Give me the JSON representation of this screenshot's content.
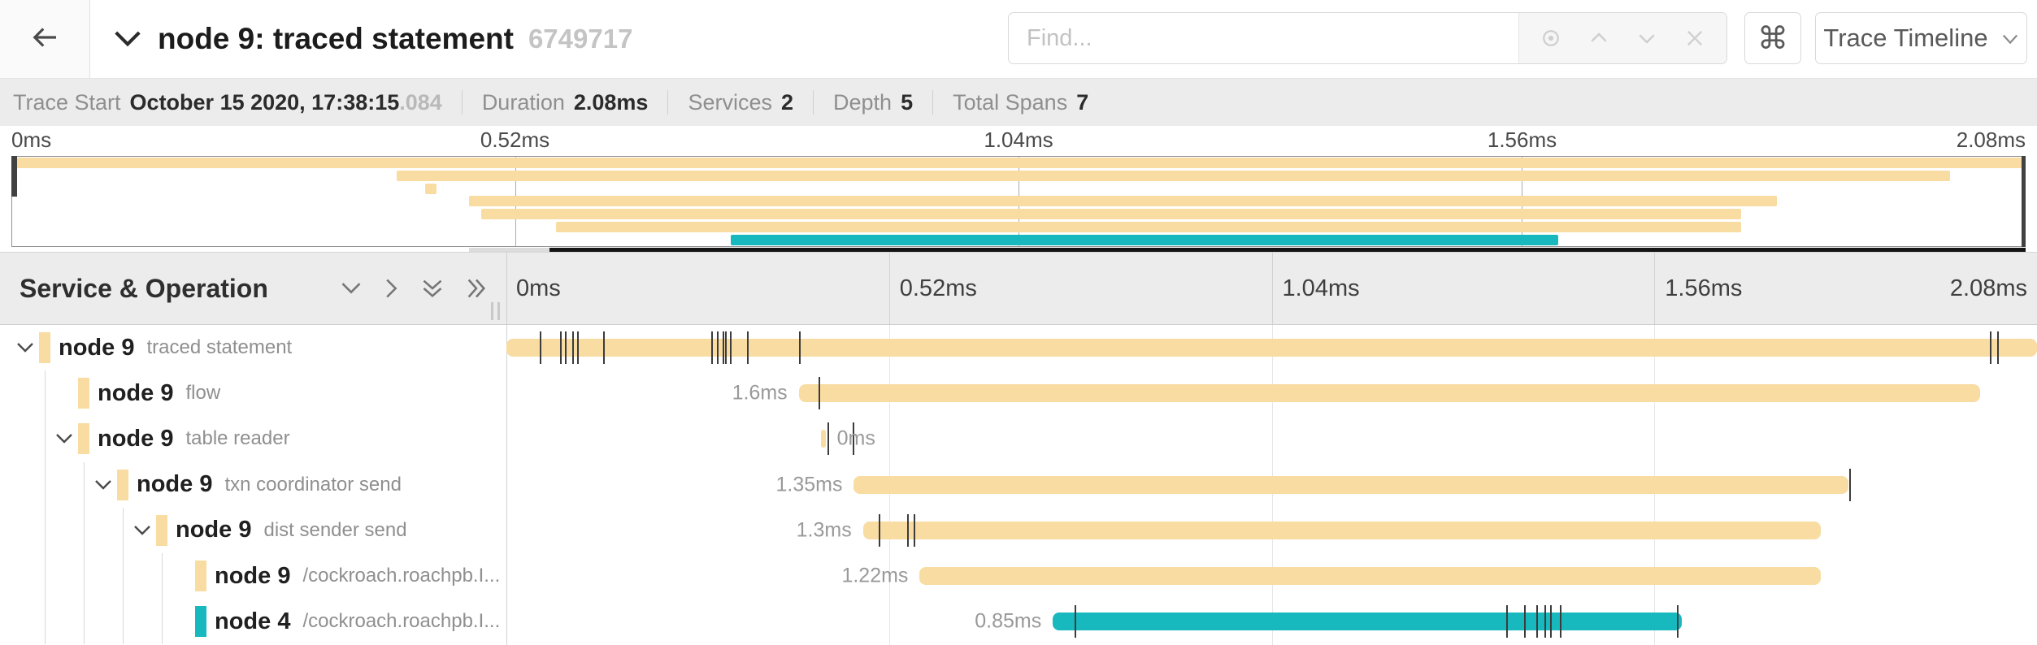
{
  "header": {
    "title": "node 9: traced statement",
    "trace_id": "6749717",
    "find_placeholder": "Find...",
    "keyboard_shortcut_label": "⌘",
    "view_selector_label": "Trace Timeline"
  },
  "summary": {
    "items": [
      {
        "label": "Trace Start",
        "value": "October 15 2020, 17:38:15",
        "value_suffix": ".084"
      },
      {
        "label": "Duration",
        "value": "2.08ms"
      },
      {
        "label": "Services",
        "value": "2"
      },
      {
        "label": "Depth",
        "value": "5"
      },
      {
        "label": "Total Spans",
        "value": "7"
      }
    ]
  },
  "timeline": {
    "left_header": "Service & Operation",
    "ticks": [
      "0ms",
      "0.52ms",
      "1.04ms",
      "1.56ms",
      "2.08ms"
    ]
  },
  "colors": {
    "tan": "#F8DCA1",
    "teal": "#17B8BE"
  },
  "minimap": {
    "spans": [
      {
        "color": "#F8DCA1",
        "start_pct": 0,
        "end_pct": 100
      },
      {
        "color": "#F8DCA1",
        "start_pct": 19.1,
        "end_pct": 96.3
      },
      {
        "color": "#F8DCA1",
        "start_pct": 20.5,
        "end_pct": 21.1
      },
      {
        "color": "#F8DCA1",
        "start_pct": 22.7,
        "end_pct": 87.7
      },
      {
        "color": "#F8DCA1",
        "start_pct": 23.3,
        "end_pct": 85.9
      },
      {
        "color": "#F8DCA1",
        "start_pct": 27.0,
        "end_pct": 85.9
      },
      {
        "color": "#17B8BE",
        "start_pct": 35.7,
        "end_pct": 76.8
      }
    ],
    "scrollbar": {
      "track_start_pct": 22.7,
      "thumb_start_pct": 26.7
    }
  },
  "spans": [
    {
      "service": "node 9",
      "operation": "traced statement",
      "level": 0,
      "expander": true,
      "color": "#F8DCA1",
      "bar_start_pct": 0,
      "bar_width_pct": 100,
      "duration_label": "",
      "label_side": "none",
      "ticks_pct": [
        2.2,
        3.5,
        3.8,
        4.3,
        4.6,
        6.3,
        13.4,
        13.75,
        14.1,
        14.3,
        14.6,
        15.7,
        19.1,
        96.9,
        97.4
      ]
    },
    {
      "service": "node 9",
      "operation": "flow",
      "level": 1,
      "expander": false,
      "color": "#F8DCA1",
      "bar_start_pct": 19.1,
      "bar_width_pct": 77.2,
      "duration_label": "1.6ms",
      "label_side": "left",
      "ticks_pct": [
        20.4
      ]
    },
    {
      "service": "node 9",
      "operation": "table reader",
      "level": 1,
      "expander": true,
      "color": "#F8DCA1",
      "bar_start_pct": 20.55,
      "bar_width_pct": 0.3,
      "duration_label": "0ms",
      "label_side": "right",
      "ticks_pct": [
        21.0,
        22.6
      ]
    },
    {
      "service": "node 9",
      "operation": "txn coordinator send",
      "level": 2,
      "expander": true,
      "color": "#F8DCA1",
      "bar_start_pct": 22.7,
      "bar_width_pct": 65.0,
      "duration_label": "1.35ms",
      "label_side": "left",
      "ticks_pct": [
        87.75
      ]
    },
    {
      "service": "node 9",
      "operation": "dist sender send",
      "level": 3,
      "expander": true,
      "color": "#F8DCA1",
      "bar_start_pct": 23.3,
      "bar_width_pct": 62.6,
      "duration_label": "1.3ms",
      "label_side": "left",
      "ticks_pct": [
        24.3,
        26.2,
        26.6
      ]
    },
    {
      "service": "node 9",
      "operation": "/cockroach.roachpb.I...",
      "level": 4,
      "expander": false,
      "color": "#F8DCA1",
      "bar_start_pct": 27.0,
      "bar_width_pct": 58.9,
      "duration_label": "1.22ms",
      "label_side": "left",
      "ticks_pct": []
    },
    {
      "service": "node 4",
      "operation": "/cockroach.roachpb.I...",
      "level": 4,
      "expander": false,
      "color": "#17B8BE",
      "bar_start_pct": 35.7,
      "bar_width_pct": 41.1,
      "duration_label": "0.85ms",
      "label_side": "left",
      "ticks_pct": [
        37.1,
        65.3,
        66.5,
        67.3,
        67.8,
        68.2,
        68.8,
        76.5
      ]
    }
  ]
}
